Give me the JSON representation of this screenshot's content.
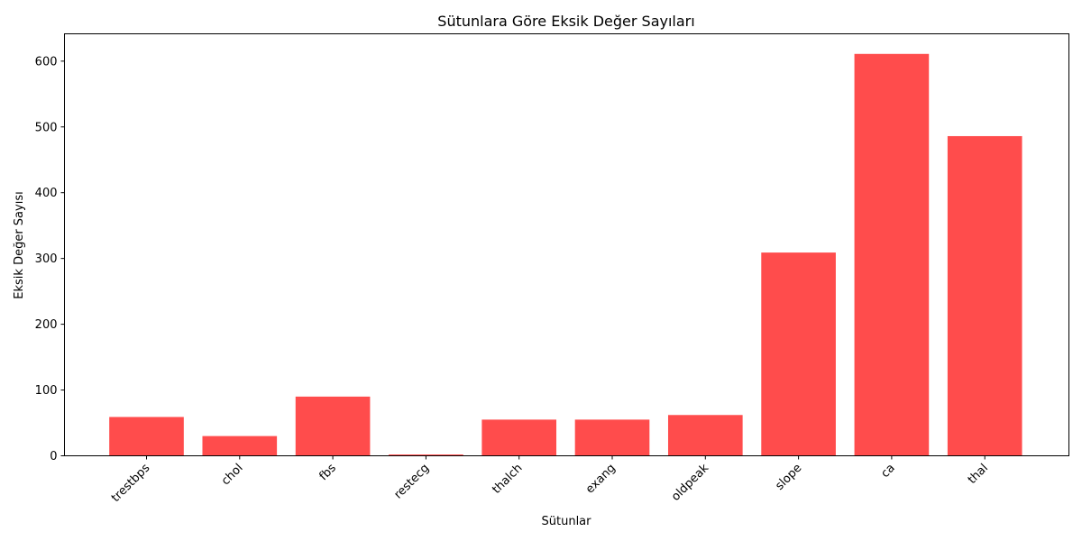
{
  "chart_data": {
    "type": "bar",
    "title": "Sütunlara Göre Eksik Değer Sayıları",
    "xlabel": "Sütunlar",
    "ylabel": "Eksik Değer Sayısı",
    "categories": [
      "trestbps",
      "chol",
      "fbs",
      "restecg",
      "thalch",
      "exang",
      "oldpeak",
      "slope",
      "ca",
      "thal"
    ],
    "values": [
      59,
      30,
      90,
      2,
      55,
      55,
      62,
      309,
      611,
      486
    ],
    "yticks": [
      0,
      100,
      200,
      300,
      400,
      500,
      600
    ],
    "ylim": [
      0,
      641.55
    ],
    "bar_color": "#ff4c4c",
    "grid": false,
    "legend": "none",
    "xtick_rotation": "45deg"
  }
}
